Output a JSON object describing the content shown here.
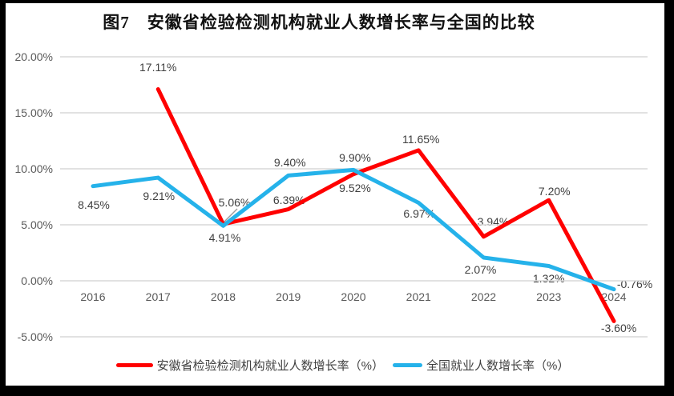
{
  "chart_data": {
    "type": "line",
    "title": "图7　安徽省检验检测机构就业人数增长率与全国的比较",
    "x": [
      "2016",
      "2017",
      "2018",
      "2019",
      "2020",
      "2021",
      "2022",
      "2023",
      "2024"
    ],
    "ylim": [
      -5,
      20
    ],
    "y_ticks": [
      20,
      15,
      10,
      5,
      0,
      -5
    ],
    "y_tick_labels": [
      "20.00%",
      "15.00%",
      "10.00%",
      "5.00%",
      "0.00%",
      "-5.00%"
    ],
    "grid": true,
    "legend_position": "bottom",
    "series": [
      {
        "name": "安徽省检验检测机构就业人数增长率（%）",
        "color": "#FF0000",
        "values": [
          null,
          17.11,
          5.06,
          6.39,
          9.52,
          11.65,
          3.94,
          7.2,
          -3.6
        ],
        "point_labels": [
          "",
          "17.11%",
          "5.06%",
          "6.39%",
          "9.52%",
          "11.65%",
          "3.94%",
          "7.20%",
          "-3.60%"
        ],
        "label_offsets": [
          [
            0,
            0
          ],
          [
            0,
            -27
          ],
          [
            14,
            -27
          ],
          [
            1,
            -12
          ],
          [
            2,
            17
          ],
          [
            3,
            -14
          ],
          [
            12,
            -19
          ],
          [
            7,
            -11
          ],
          [
            6,
            9
          ]
        ]
      },
      {
        "name": "全国就业人数增长率（%）",
        "color": "#25B2EA",
        "values": [
          8.45,
          9.21,
          4.91,
          9.4,
          9.9,
          6.97,
          2.07,
          1.32,
          -0.76
        ],
        "point_labels": [
          "8.45%",
          "9.21%",
          "4.91%",
          "9.40%",
          "9.90%",
          "6.97%",
          "2.07%",
          "1.32%",
          "-0.76%"
        ],
        "label_offsets": [
          [
            1,
            23
          ],
          [
            1,
            23
          ],
          [
            2,
            15
          ],
          [
            2,
            -16
          ],
          [
            2,
            -15
          ],
          [
            1,
            14
          ],
          [
            -4,
            15
          ],
          [
            0,
            15
          ],
          [
            26,
            -7
          ]
        ]
      }
    ]
  },
  "colors": {
    "grid": "#D9D9D9",
    "axis_text": "#595959",
    "label_text": "#3F3F3F",
    "leader": "#9E9E9E",
    "frame_border": "#000000"
  }
}
